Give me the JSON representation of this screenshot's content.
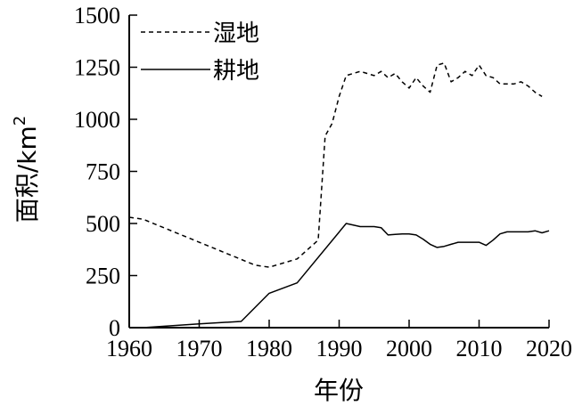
{
  "chart_data": {
    "type": "line",
    "xlabel": "年份",
    "ylabel": "面积/km",
    "ylabel_superscript": "2",
    "xlim": [
      1960,
      2020
    ],
    "ylim": [
      0,
      1500
    ],
    "xticks": [
      "1960",
      "1970",
      "1980",
      "1990",
      "2000",
      "2010",
      "2020"
    ],
    "yticks": [
      "0",
      "250",
      "500",
      "750",
      "1000",
      "1250",
      "1500"
    ],
    "grid": false,
    "legend_position": "top-left",
    "series": [
      {
        "name": "湿地",
        "line_style": "dashed",
        "color": "#000000",
        "x": [
          1960,
          1962,
          1978,
          1980,
          1984,
          1987,
          1988,
          1989,
          1990,
          1991,
          1992,
          1993,
          1994,
          1995,
          1996,
          1997,
          1998,
          1999,
          2000,
          2001,
          2002,
          2003,
          2004,
          2005,
          2006,
          2007,
          2008,
          2009,
          2010,
          2011,
          2012,
          2013,
          2014,
          2015,
          2016,
          2017,
          2018,
          2019
        ],
        "y": [
          530,
          520,
          300,
          290,
          330,
          420,
          920,
          980,
          1110,
          1210,
          1220,
          1230,
          1220,
          1210,
          1230,
          1200,
          1220,
          1180,
          1150,
          1200,
          1160,
          1130,
          1260,
          1270,
          1180,
          1200,
          1230,
          1210,
          1260,
          1210,
          1200,
          1170,
          1170,
          1170,
          1180,
          1160,
          1130,
          1110
        ]
      },
      {
        "name": "耕地",
        "line_style": "solid",
        "color": "#000000",
        "x": [
          1962,
          1970,
          1976,
          1980,
          1984,
          1991,
          1993,
          1995,
          1996,
          1997,
          1998,
          1999,
          2000,
          2001,
          2002,
          2003,
          2004,
          2005,
          2006,
          2007,
          2008,
          2009,
          2010,
          2011,
          2012,
          2013,
          2014,
          2015,
          2016,
          2017,
          2018,
          2019,
          2020
        ],
        "y": [
          0,
          18,
          30,
          165,
          215,
          500,
          485,
          485,
          480,
          445,
          448,
          450,
          450,
          445,
          425,
          400,
          385,
          390,
          400,
          410,
          410,
          410,
          410,
          395,
          420,
          450,
          460,
          460,
          460,
          460,
          465,
          455,
          465
        ]
      }
    ]
  }
}
